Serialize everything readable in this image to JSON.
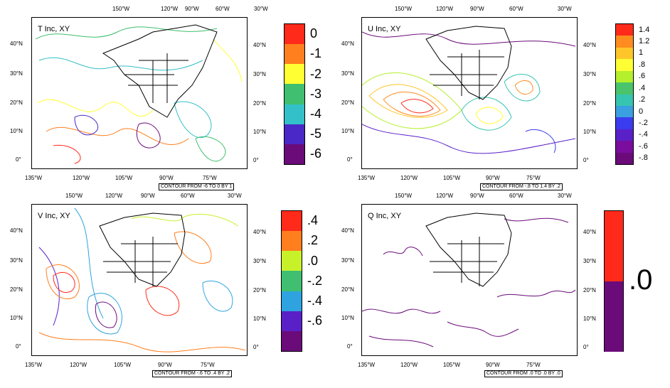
{
  "panels": [
    {
      "id": "t",
      "title": "T Inc, XY",
      "contour_note": "CONTOUR FROM -6 TO 0 BY 1",
      "colorbar": {
        "labels": [
          "0",
          "-1",
          "-2",
          "-3",
          "-4",
          "-5",
          "-6"
        ],
        "colors": [
          "#ff2a1a",
          "#ff7f1e",
          "#ffff33",
          "#3fbf6f",
          "#33c0c8",
          "#4a27c7",
          "#6b0b7a"
        ]
      }
    },
    {
      "id": "u",
      "title": "U Inc, XY",
      "contour_note": "CONTOUR FROM -.8 TO 1.4 BY .2",
      "colorbar": {
        "labels": [
          "1.4",
          "1.2",
          "1",
          ".8",
          ".6",
          ".4",
          ".2",
          "0",
          "-.2",
          "-.4",
          "-.6",
          "-.8"
        ],
        "colors": [
          "#ff2a1a",
          "#ff8c1e",
          "#ffc629",
          "#ffff33",
          "#b4f02b",
          "#49c46a",
          "#36c5b0",
          "#3aa0e0",
          "#3b3bef",
          "#5a20c8",
          "#7a0d9e",
          "#6b0b7a"
        ]
      }
    },
    {
      "id": "v",
      "title": "V Inc, XY",
      "contour_note": "CONTOUR FROM -.6 TO .4 BY .2",
      "colorbar": {
        "labels": [
          ".4",
          ".2",
          ".0",
          "-.2",
          "-.4",
          "-.6"
        ],
        "colors": [
          "#ff2a1a",
          "#ff7f1e",
          "#c7f22a",
          "#3fbf6f",
          "#2ea3e0",
          "#5a20c8",
          "#6b0b7a"
        ]
      }
    },
    {
      "id": "q",
      "title": "Q Inc, XY",
      "contour_note": "CONTOUR FROM .0 TO .0 BY .0",
      "colorbar": {
        "labels": [
          ".0"
        ],
        "colors": [
          "#ff2a1a",
          "#6b0b7a"
        ]
      }
    }
  ],
  "axes": {
    "top_ticks": [
      "150°W",
      "120°W",
      "90°W",
      "60°W",
      "30°W"
    ],
    "bottom_ticks": [
      "135°W",
      "120°W",
      "105°W",
      "90°W",
      "75°W"
    ],
    "lat_ticks": [
      "40°N",
      "30°N",
      "20°N",
      "10°N",
      "0°"
    ]
  }
}
